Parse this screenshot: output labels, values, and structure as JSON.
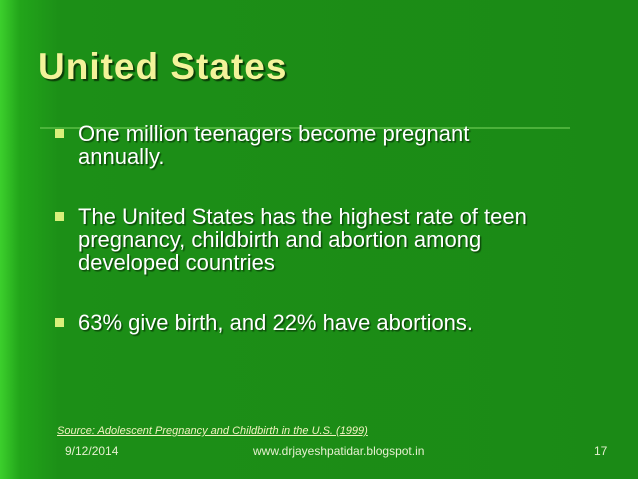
{
  "title": "United States",
  "bullets": [
    {
      "lines": [
        "One million teenagers become pregnant",
        "annually."
      ]
    },
    {
      "lines": [
        "The United States has the highest rate of teen",
        "pregnancy, childbirth and abortion among",
        "developed countries"
      ]
    },
    {
      "lines": [
        "63% give birth, and 22% have abortions."
      ]
    }
  ],
  "source": "Source: Adolescent Pregnancy and Childbirth in the U.S. (1999)",
  "footer": {
    "date": "9/12/2014",
    "url": "www.drjayeshpatidar.blogspot.in",
    "page": "17"
  }
}
